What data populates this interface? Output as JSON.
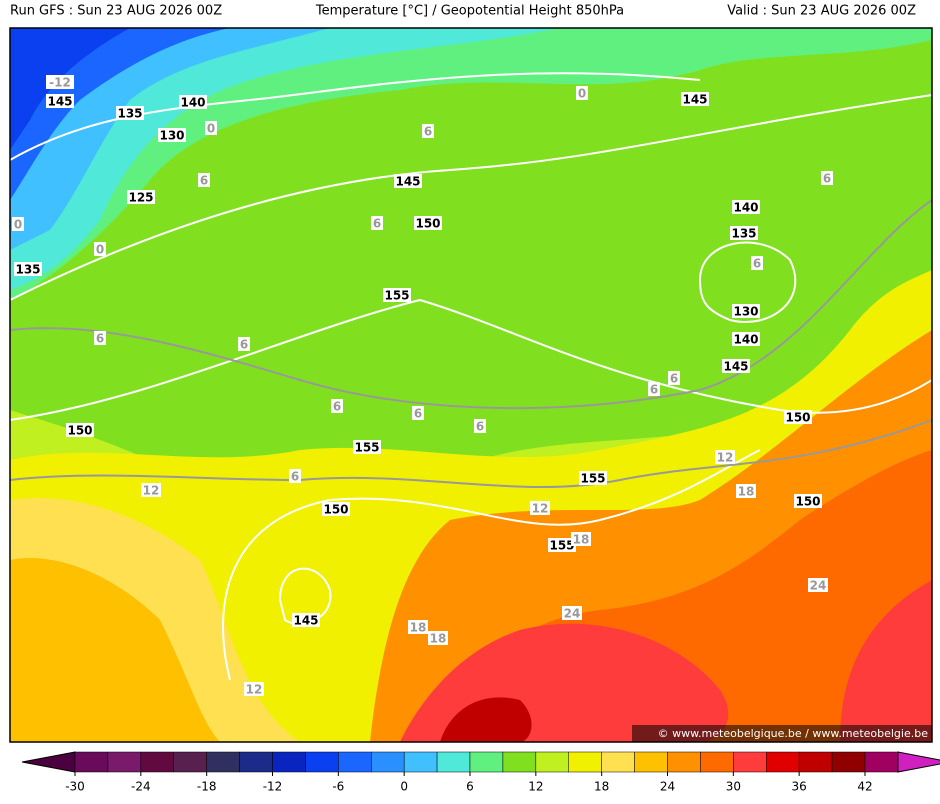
{
  "header": {
    "run": "Run GFS : Sun 23 AUG 2026 00Z",
    "title": "Temperature [°C] / Geopotential Height 850hPa",
    "valid": "Valid : Sun 23 AUG 2026 00Z"
  },
  "height_labels": [
    "145",
    "135",
    "140",
    "130",
    "145",
    "145",
    "125",
    "135",
    "150",
    "140",
    "135",
    "155",
    "130",
    "140",
    "145",
    "150",
    "150",
    "155",
    "155",
    "150",
    "150",
    "155",
    "145"
  ],
  "temperature_labels": [
    "-12",
    "0",
    "0",
    "6",
    "6",
    "0",
    "0",
    "6",
    "6",
    "6",
    "6",
    "6",
    "6",
    "6",
    "6",
    "6",
    "6",
    "12",
    "12",
    "6",
    "18",
    "12",
    "18",
    "24",
    "18",
    "18",
    "24",
    "12"
  ],
  "watermark": "© www.meteobelgique.be / www.meteobelgie.be",
  "colorbar": {
    "ticks": [
      -30,
      -24,
      -18,
      -12,
      -6,
      0,
      6,
      12,
      18,
      24,
      30,
      36,
      42
    ],
    "colors": [
      "#4b0040",
      "#6a0a5a",
      "#7a1a6a",
      "#600a40",
      "#58204f",
      "#303060",
      "#1c2a8a",
      "#0a24c0",
      "#0a40f0",
      "#1a66ff",
      "#2a90ff",
      "#40c0ff",
      "#50e8d8",
      "#60f080",
      "#80e020",
      "#c0f020",
      "#f0f000",
      "#ffe050",
      "#ffc000",
      "#ff9000",
      "#ff6a00",
      "#ff3c3c",
      "#e00000",
      "#c00000",
      "#900000",
      "#a00060",
      "#d020c0"
    ]
  }
}
